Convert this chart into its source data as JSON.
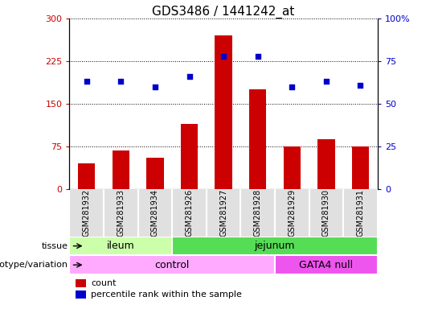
{
  "title": "GDS3486 / 1441242_at",
  "samples": [
    "GSM281932",
    "GSM281933",
    "GSM281934",
    "GSM281926",
    "GSM281927",
    "GSM281928",
    "GSM281929",
    "GSM281930",
    "GSM281931"
  ],
  "counts": [
    45,
    68,
    55,
    115,
    270,
    175,
    75,
    88,
    75
  ],
  "percentile_ranks": [
    63,
    63,
    60,
    66,
    78,
    78,
    60,
    63,
    61
  ],
  "ylim_left": [
    0,
    300
  ],
  "ylim_right": [
    0,
    100
  ],
  "yticks_left": [
    0,
    75,
    150,
    225,
    300
  ],
  "yticks_right": [
    0,
    25,
    50,
    75,
    100
  ],
  "bar_color": "#cc0000",
  "dot_color": "#0000cc",
  "tissue_labels": [
    {
      "label": "ileum",
      "start": 0,
      "end": 3,
      "color": "#ccffaa"
    },
    {
      "label": "jejunum",
      "start": 3,
      "end": 9,
      "color": "#55dd55"
    }
  ],
  "genotype_labels": [
    {
      "label": "control",
      "start": 0,
      "end": 6,
      "color": "#ffaaff"
    },
    {
      "label": "GATA4 null",
      "start": 6,
      "end": 9,
      "color": "#ee55ee"
    }
  ],
  "legend_count_label": "count",
  "legend_pct_label": "percentile rank within the sample",
  "tissue_row_label": "tissue",
  "genotype_row_label": "genotype/variation",
  "title_fontsize": 11,
  "tick_fontsize": 8,
  "sample_fontsize": 7,
  "label_fontsize": 8
}
